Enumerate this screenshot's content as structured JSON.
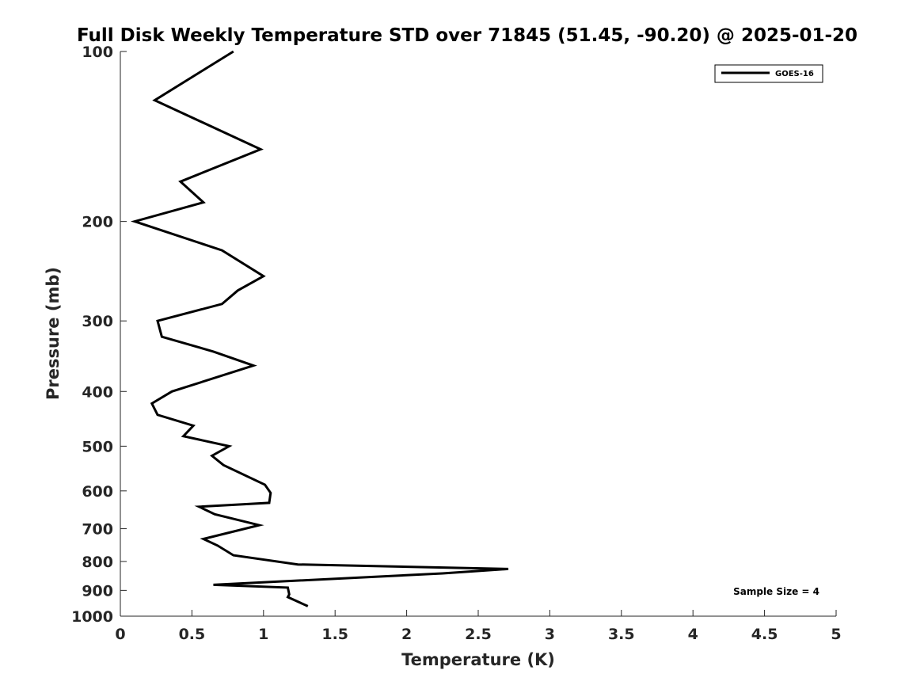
{
  "chart_data": {
    "type": "line",
    "title": "Full Disk Weekly Temperature STD over 71845 (51.45, -90.20) @ 2025-01-20",
    "xlabel": "Temperature (K)",
    "ylabel": "Pressure (mb)",
    "xlim": [
      0,
      5
    ],
    "ylim": [
      100,
      1000
    ],
    "y_scale": "log",
    "y_direction": "reversed",
    "grid": false,
    "legend_position": "top-right",
    "x_ticks": [
      "0",
      "0.5",
      "1",
      "1.5",
      "2",
      "2.5",
      "3",
      "3.5",
      "4",
      "4.5",
      "5"
    ],
    "y_ticks": [
      "100",
      "200",
      "300",
      "400",
      "500",
      "600",
      "700",
      "800",
      "900",
      "1000"
    ],
    "series": [
      {
        "name": "GOES-16",
        "color": "#000000",
        "points": [
          {
            "t": 0.79,
            "p": 100
          },
          {
            "t": 0.24,
            "p": 122
          },
          {
            "t": 0.98,
            "p": 149
          },
          {
            "t": 0.42,
            "p": 170
          },
          {
            "t": 0.58,
            "p": 185
          },
          {
            "t": 0.1,
            "p": 200
          },
          {
            "t": 0.71,
            "p": 225
          },
          {
            "t": 1.0,
            "p": 250
          },
          {
            "t": 0.82,
            "p": 265
          },
          {
            "t": 0.71,
            "p": 280
          },
          {
            "t": 0.26,
            "p": 300
          },
          {
            "t": 0.29,
            "p": 320
          },
          {
            "t": 0.65,
            "p": 340
          },
          {
            "t": 0.93,
            "p": 360
          },
          {
            "t": 0.36,
            "p": 400
          },
          {
            "t": 0.22,
            "p": 420
          },
          {
            "t": 0.26,
            "p": 440
          },
          {
            "t": 0.51,
            "p": 460
          },
          {
            "t": 0.44,
            "p": 480
          },
          {
            "t": 0.76,
            "p": 500
          },
          {
            "t": 0.64,
            "p": 520
          },
          {
            "t": 0.72,
            "p": 540
          },
          {
            "t": 1.01,
            "p": 585
          },
          {
            "t": 1.05,
            "p": 605
          },
          {
            "t": 1.04,
            "p": 630
          },
          {
            "t": 0.55,
            "p": 640
          },
          {
            "t": 0.66,
            "p": 660
          },
          {
            "t": 0.97,
            "p": 690
          },
          {
            "t": 0.58,
            "p": 730
          },
          {
            "t": 0.68,
            "p": 750
          },
          {
            "t": 0.79,
            "p": 780
          },
          {
            "t": 1.24,
            "p": 810
          },
          {
            "t": 2.71,
            "p": 825
          },
          {
            "t": 2.25,
            "p": 840
          },
          {
            "t": 0.65,
            "p": 880
          },
          {
            "t": 1.17,
            "p": 890
          },
          {
            "t": 1.18,
            "p": 915
          },
          {
            "t": 1.17,
            "p": 925
          },
          {
            "t": 1.31,
            "p": 960
          }
        ]
      }
    ],
    "annotations": [
      {
        "text": "Sample Size = 4",
        "position": "bottom-right"
      }
    ]
  }
}
